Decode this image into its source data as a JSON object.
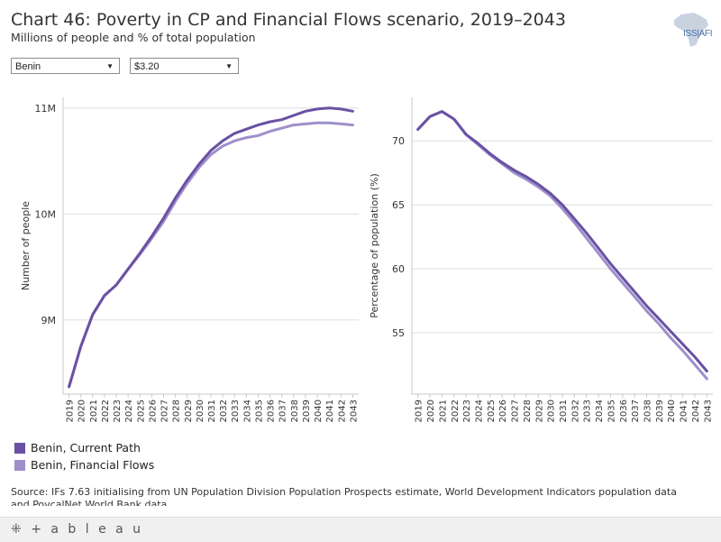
{
  "header": {
    "title": "Chart 46: Poverty in CP and Financial Flows scenario, 2019–2043",
    "subtitle": "Millions of people and % of total population",
    "logo_text": "ISS|AFI"
  },
  "filters": {
    "country": "Benin",
    "threshold": "$3.20"
  },
  "colors": {
    "current_path": "#6a51a3",
    "financial_flows": "#9e8fcb",
    "grid": "#dedede"
  },
  "legend": [
    {
      "label": "Benin, Current Path",
      "color": "#6a51a3"
    },
    {
      "label": "Benin, Financial Flows",
      "color": "#9e8fcb"
    }
  ],
  "source": "Source: IFs 7.63 initialising from UN Population Division Population Prospects estimate, World Development Indicators population data and PovcalNet World Bank data",
  "footer": {
    "brand": "+ a b l e a u"
  },
  "chart_data": [
    {
      "type": "line",
      "title": "",
      "xlabel": "",
      "ylabel": "Number of people",
      "x": [
        2019,
        2020,
        2021,
        2022,
        2023,
        2024,
        2025,
        2026,
        2027,
        2028,
        2029,
        2030,
        2031,
        2032,
        2033,
        2034,
        2035,
        2036,
        2037,
        2038,
        2039,
        2040,
        2041,
        2042,
        2043
      ],
      "ylim": [
        8.3,
        11.1
      ],
      "yticks": [
        9,
        10,
        11
      ],
      "ytick_labels": [
        "9M",
        "10M",
        "11M"
      ],
      "series": [
        {
          "name": "Benin, Current Path",
          "values": [
            8.37,
            8.75,
            9.05,
            9.23,
            9.33,
            9.48,
            9.63,
            9.79,
            9.96,
            10.15,
            10.32,
            10.47,
            10.6,
            10.69,
            10.76,
            10.8,
            10.84,
            10.87,
            10.89,
            10.93,
            10.97,
            10.99,
            11.0,
            10.99,
            10.97
          ]
        },
        {
          "name": "Benin, Financial Flows",
          "values": [
            8.37,
            8.75,
            9.05,
            9.23,
            9.33,
            9.48,
            9.62,
            9.77,
            9.93,
            10.12,
            10.29,
            10.44,
            10.56,
            10.64,
            10.69,
            10.72,
            10.74,
            10.78,
            10.81,
            10.84,
            10.85,
            10.86,
            10.86,
            10.85,
            10.84
          ]
        }
      ]
    },
    {
      "type": "line",
      "title": "",
      "xlabel": "",
      "ylabel": "Percentage of population (%)",
      "x": [
        2019,
        2020,
        2021,
        2022,
        2023,
        2024,
        2025,
        2026,
        2027,
        2028,
        2029,
        2030,
        2031,
        2032,
        2033,
        2034,
        2035,
        2036,
        2037,
        2038,
        2039,
        2040,
        2041,
        2042,
        2043
      ],
      "ylim": [
        50.2,
        73.4
      ],
      "yticks": [
        55,
        60,
        65,
        70
      ],
      "ytick_labels": [
        "55",
        "60",
        "65",
        "70"
      ],
      "series": [
        {
          "name": "Benin, Current Path",
          "values": [
            70.9,
            71.9,
            72.3,
            71.7,
            70.5,
            69.8,
            69.0,
            68.3,
            67.7,
            67.2,
            66.6,
            65.9,
            65.0,
            63.9,
            62.8,
            61.6,
            60.4,
            59.3,
            58.2,
            57.1,
            56.1,
            55.1,
            54.1,
            53.1,
            52.0
          ]
        },
        {
          "name": "Benin, Financial Flows",
          "values": [
            70.9,
            71.9,
            72.3,
            71.7,
            70.5,
            69.7,
            68.9,
            68.2,
            67.5,
            67.0,
            66.4,
            65.7,
            64.7,
            63.6,
            62.4,
            61.2,
            60.0,
            58.9,
            57.8,
            56.7,
            55.7,
            54.6,
            53.6,
            52.5,
            51.4
          ]
        }
      ]
    }
  ]
}
